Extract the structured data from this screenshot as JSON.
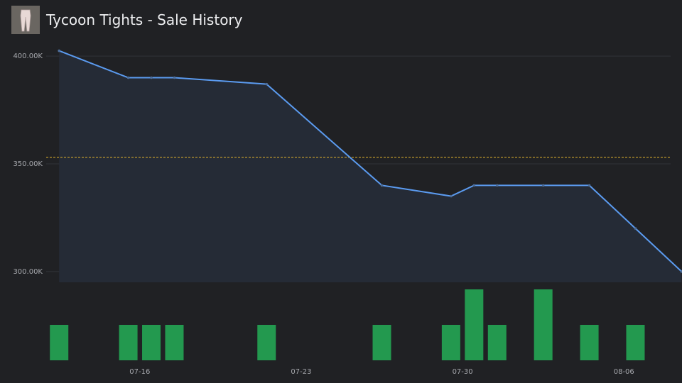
{
  "chart_data": {
    "type": "line",
    "title": "Tycoon Tights - Sale History",
    "ylim": [
      295000,
      405000
    ],
    "yticks": [
      {
        "value": 300000,
        "label": "300.00K"
      },
      {
        "value": 350000,
        "label": "350.00K"
      },
      {
        "value": 400000,
        "label": "400.00K"
      }
    ],
    "xlim": [
      "07-12",
      "08-09"
    ],
    "xticks": [
      "07-16",
      "07-23",
      "07-30",
      "08-06"
    ],
    "grid": true,
    "price": {
      "color": "#5b9bf0",
      "x": [
        "07-12",
        "07-15",
        "07-16",
        "07-17",
        "07-21",
        "07-26",
        "07-29",
        "07-30",
        "07-31",
        "08-02",
        "08-04",
        "08-06",
        "08-08"
      ],
      "values": [
        402500,
        390000,
        390000,
        390000,
        387000,
        340000,
        335000,
        340000,
        340000,
        340000,
        340000,
        320000,
        300000
      ]
    },
    "reference_line": {
      "value": 353000,
      "color": "#e2b32c"
    },
    "volume": {
      "color": "#23994f",
      "ylim": [
        0,
        2
      ],
      "x": [
        "07-12",
        "07-15",
        "07-16",
        "07-17",
        "07-21",
        "07-26",
        "07-29",
        "07-30",
        "07-31",
        "08-02",
        "08-04",
        "08-06"
      ],
      "values": [
        1,
        1,
        1,
        1,
        1,
        1,
        1,
        2,
        1,
        2,
        1,
        1
      ]
    }
  }
}
